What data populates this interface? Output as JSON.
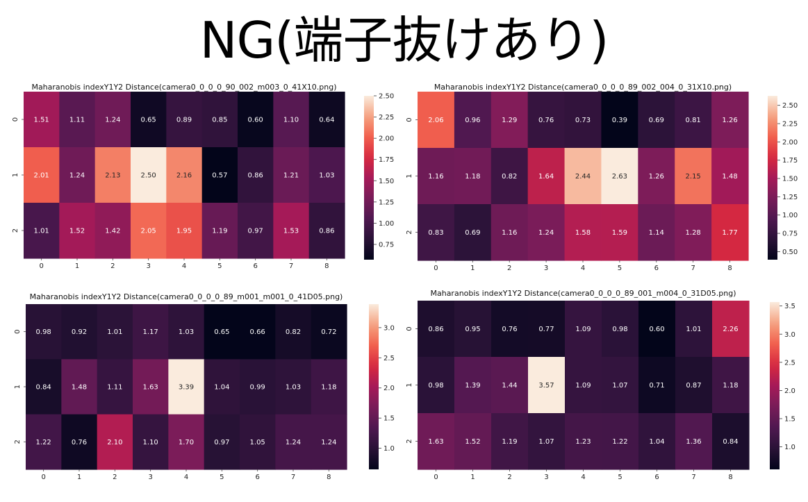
{
  "page": {
    "title": "NG(端子抜けあり)"
  },
  "chart_data": [
    {
      "type": "heatmap",
      "title": "Maharanobis indexY1Y2 Distance(camera0_0_0_0_90_002_m003_0_41X10.png)",
      "x": [
        "0",
        "1",
        "2",
        "3",
        "4",
        "5",
        "6",
        "7",
        "8"
      ],
      "y": [
        "0",
        "1",
        "2"
      ],
      "values": [
        [
          1.51,
          1.11,
          1.24,
          0.65,
          0.89,
          0.85,
          0.6,
          1.1,
          0.64
        ],
        [
          2.01,
          1.24,
          2.13,
          2.5,
          2.16,
          0.57,
          0.86,
          1.21,
          1.03
        ],
        [
          1.01,
          1.52,
          1.42,
          2.05,
          1.95,
          1.19,
          0.97,
          1.53,
          0.86
        ]
      ],
      "color_range": [
        0.57,
        2.5
      ],
      "colorbar_ticks": [
        "0.75",
        "1.00",
        "1.25",
        "1.50",
        "1.75",
        "2.00",
        "2.25",
        "2.50"
      ],
      "colormap": "rocket",
      "grid": false
    },
    {
      "type": "heatmap",
      "title": "Maharanobis indexY1Y2 Distance(camera0_0_0_0_89_002_004_0_31X10.png)",
      "x": [
        "0",
        "1",
        "2",
        "3",
        "4",
        "5",
        "6",
        "7",
        "8"
      ],
      "y": [
        "0",
        "1",
        "2"
      ],
      "values": [
        [
          2.06,
          0.96,
          1.29,
          0.76,
          0.73,
          0.39,
          0.69,
          0.81,
          1.26
        ],
        [
          1.16,
          1.18,
          0.82,
          1.64,
          2.44,
          2.63,
          1.26,
          2.15,
          1.48
        ],
        [
          0.83,
          0.69,
          1.16,
          1.24,
          1.58,
          1.59,
          1.14,
          1.28,
          1.77
        ]
      ],
      "color_range": [
        0.39,
        2.63
      ],
      "colorbar_ticks": [
        "0.50",
        "0.75",
        "1.00",
        "1.25",
        "1.50",
        "1.75",
        "2.00",
        "2.25",
        "2.50"
      ],
      "colormap": "rocket",
      "grid": false
    },
    {
      "type": "heatmap",
      "title": "Maharanobis indexY1Y2 Distance(camera0_0_0_0_89_m001_m001_0_41D05.png)",
      "x": [
        "0",
        "1",
        "2",
        "3",
        "4",
        "5",
        "6",
        "7",
        "8"
      ],
      "y": [
        "0",
        "1",
        "2"
      ],
      "values": [
        [
          0.98,
          0.92,
          1.01,
          1.17,
          1.03,
          0.65,
          0.66,
          0.82,
          0.72
        ],
        [
          0.84,
          1.48,
          1.11,
          1.63,
          3.39,
          1.04,
          0.99,
          1.03,
          1.18
        ],
        [
          1.22,
          0.76,
          2.1,
          1.1,
          1.7,
          0.97,
          1.05,
          1.24,
          1.24
        ]
      ],
      "color_range": [
        0.65,
        3.39
      ],
      "colorbar_ticks": [
        "1.0",
        "1.5",
        "2.0",
        "2.5",
        "3.0"
      ],
      "colormap": "rocket",
      "grid": false
    },
    {
      "type": "heatmap",
      "title": "Maharanobis indexY1Y2 Distance(camera0_0_0_0_89_001_m004_0_31D05.png)",
      "x": [
        "0",
        "1",
        "2",
        "3",
        "4",
        "5",
        "6",
        "7",
        "8"
      ],
      "y": [
        "0",
        "1",
        "2"
      ],
      "values": [
        [
          0.86,
          0.95,
          0.76,
          0.77,
          1.09,
          0.98,
          0.6,
          1.01,
          2.26
        ],
        [
          0.98,
          1.39,
          1.44,
          3.57,
          1.09,
          1.07,
          0.71,
          0.87,
          1.18
        ],
        [
          1.63,
          1.52,
          1.19,
          1.07,
          1.23,
          1.22,
          1.04,
          1.36,
          0.84
        ]
      ],
      "color_range": [
        0.6,
        3.57
      ],
      "colorbar_ticks": [
        "1.0",
        "1.5",
        "2.0",
        "2.5",
        "3.0",
        "3.5"
      ],
      "colormap": "rocket",
      "grid": false
    }
  ]
}
